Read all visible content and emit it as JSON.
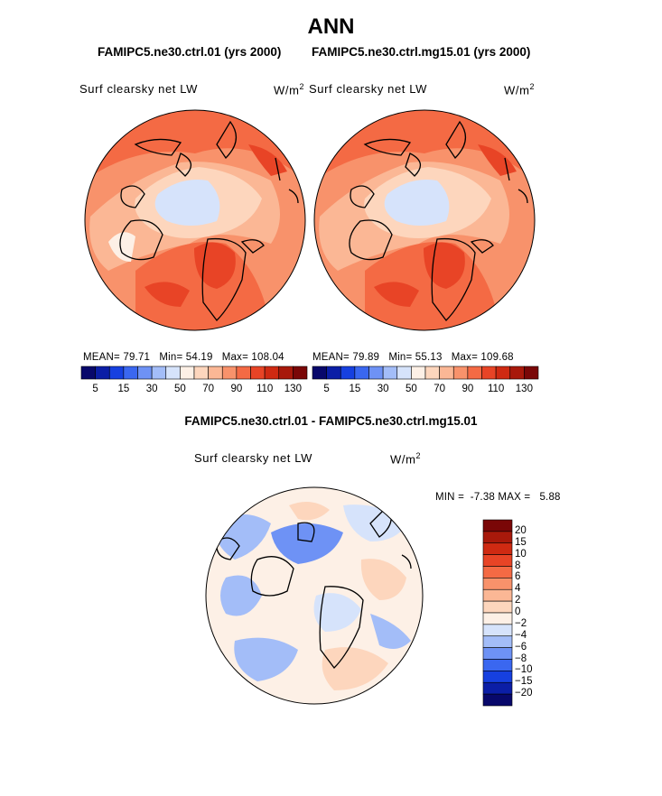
{
  "title": "ANN",
  "panels": [
    {
      "case_label": "FAMIPC5.ne30.ctrl.01 (yrs 2000)",
      "var_label": "Surf clearsky net LW",
      "units_base": "W/m",
      "units_exp": "2",
      "mean_label": "MEAN=",
      "mean": "79.71",
      "min_label": "Min=",
      "min": "54.19",
      "max_label": "Max=",
      "max": "108.04"
    },
    {
      "case_label": "FAMIPC5.ne30.ctrl.mg15.01 (yrs 2000)",
      "var_label": "Surf clearsky net LW",
      "units_base": "W/m",
      "units_exp": "2",
      "mean_label": "MEAN=",
      "mean": "79.89",
      "min_label": "Min=",
      "min": "55.13",
      "max_label": "Max=",
      "max": "109.68"
    }
  ],
  "abs_colorbar": {
    "colors": [
      "#08086b",
      "#0b1ea6",
      "#1640e0",
      "#3a67f0",
      "#6e92f5",
      "#a3bdf8",
      "#d6e3fb",
      "#fdf0e6",
      "#fdd6bd",
      "#fbb795",
      "#f8926b",
      "#f46a44",
      "#e84426",
      "#cf2a12",
      "#a8190b",
      "#7a0707"
    ],
    "tick_labels": [
      "5",
      "15",
      "30",
      "50",
      "70",
      "90",
      "110",
      "130"
    ]
  },
  "diff_panel": {
    "case_label": "FAMIPC5.ne30.ctrl.01 - FAMIPC5.ne30.ctrl.mg15.01",
    "var_label": "Surf clearsky net LW",
    "units_base": "W/m",
    "units_exp": "2",
    "min_label": "MIN =",
    "min": "-7.38",
    "max_label": "MAX =",
    "max": "5.88"
  },
  "diff_colorbar": {
    "colors": [
      "#7a0707",
      "#a8190b",
      "#cf2a12",
      "#e84426",
      "#f46a44",
      "#f8926b",
      "#fbb795",
      "#fdd6bd",
      "#fdf0e6",
      "#d6e3fb",
      "#a3bdf8",
      "#6e92f5",
      "#3a67f0",
      "#1640e0",
      "#0b1ea6",
      "#08086b"
    ],
    "tick_labels": [
      "20",
      "15",
      "10",
      "8",
      "6",
      "4",
      "2",
      "0",
      "−2",
      "−4",
      "−6",
      "−8",
      "−10",
      "−15",
      "−20"
    ]
  }
}
